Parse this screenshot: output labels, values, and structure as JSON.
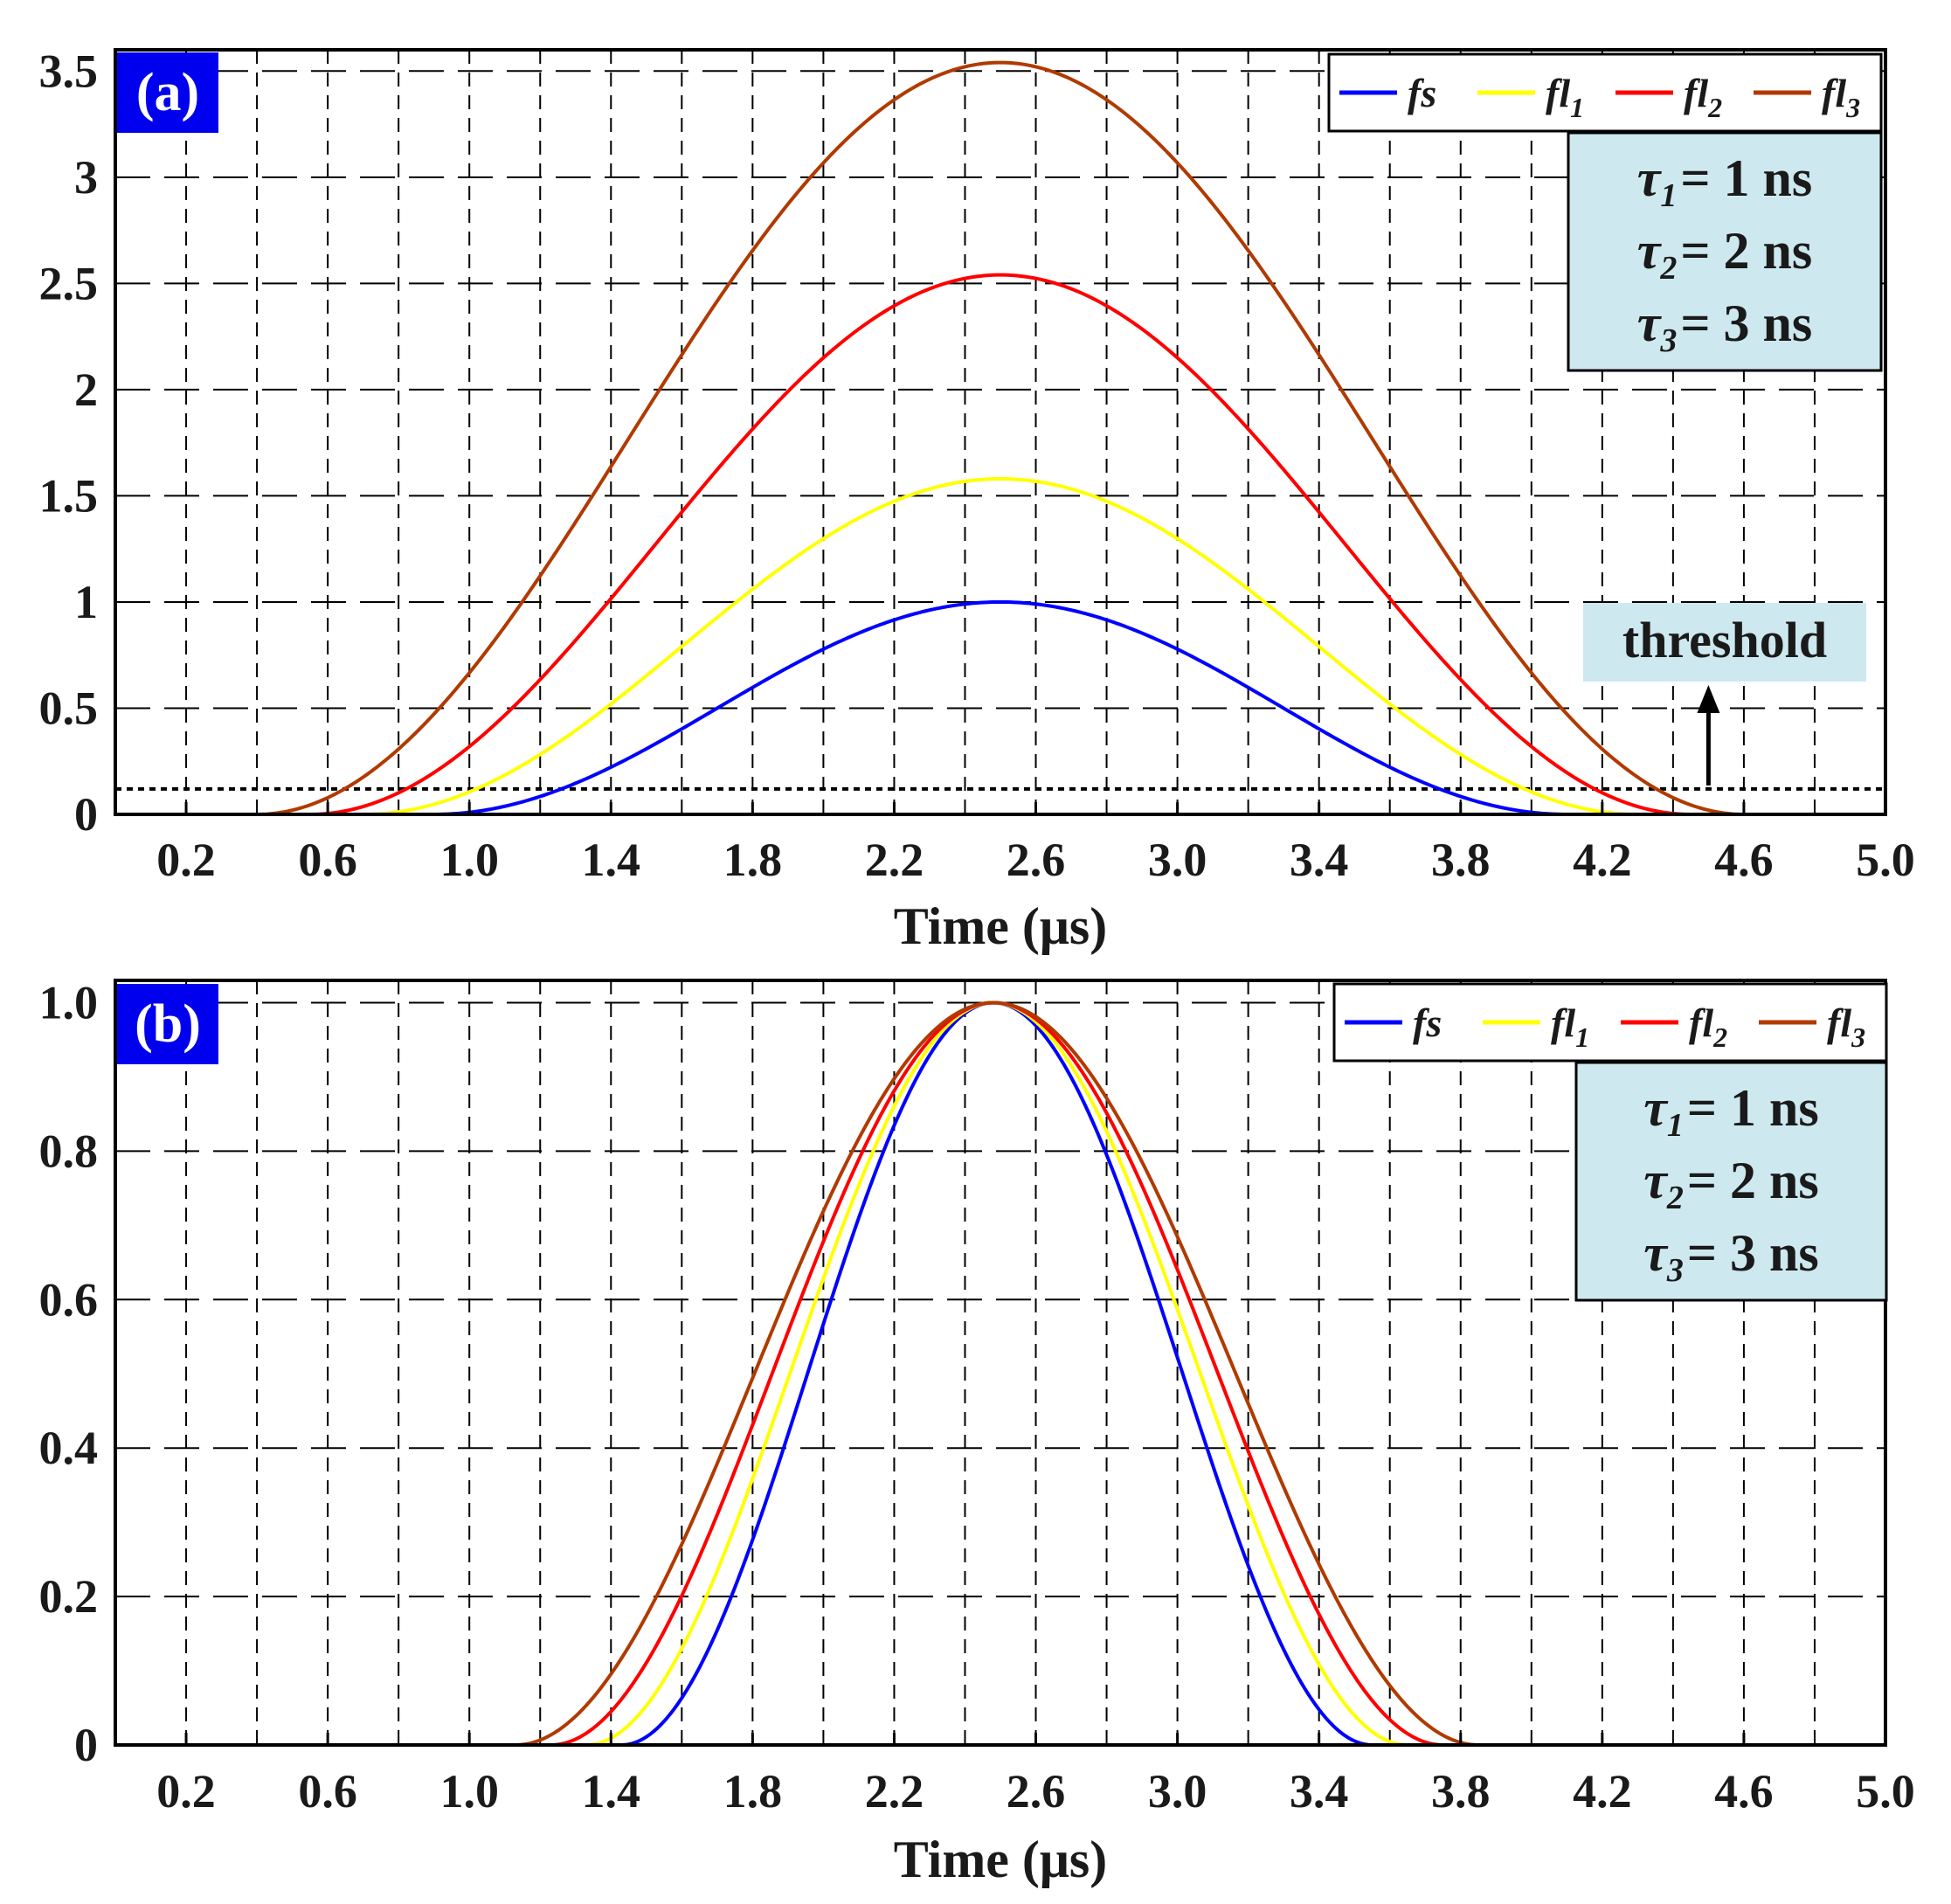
{
  "chart_data": [
    {
      "type": "line",
      "panel_label": "(a)",
      "xlabel": "Time (μs)",
      "ylabel": "",
      "xlim": [
        0,
        5.0
      ],
      "ylim": [
        0,
        3.6
      ],
      "x_ticks": [
        0.2,
        0.6,
        1.0,
        1.4,
        1.8,
        2.2,
        2.6,
        3.0,
        3.4,
        3.8,
        4.2,
        4.6,
        5.0
      ],
      "x_tick_labels": [
        "0.2",
        "0.6",
        "1.0",
        "1.4",
        "1.8",
        "2.2",
        "2.6",
        "3.0",
        "3.4",
        "3.8",
        "4.2",
        "4.6",
        "5.0"
      ],
      "y_ticks": [
        0,
        0.5,
        1,
        1.5,
        2,
        2.5,
        3,
        3.5
      ],
      "y_tick_labels": [
        "0",
        "0.5",
        "1",
        "1.5",
        "2",
        "2.5",
        "3",
        "3.5"
      ],
      "grid": true,
      "legend_position": "top-right",
      "series": [
        {
          "name": "fs",
          "color": "#0000ff",
          "peak_x": 2.5,
          "peak_y": 1.0,
          "start_x": 0.9,
          "end_x": 4.1
        },
        {
          "name": "fl1",
          "color": "#ffff00",
          "peak_x": 2.5,
          "peak_y": 1.58,
          "start_x": 0.7,
          "end_x": 4.3
        },
        {
          "name": "fl2",
          "color": "#ff0000",
          "peak_x": 2.5,
          "peak_y": 2.54,
          "start_x": 0.55,
          "end_x": 4.45
        },
        {
          "name": "fl3",
          "color": "#b03a00",
          "peak_x": 2.5,
          "peak_y": 3.54,
          "start_x": 0.4,
          "end_x": 4.6
        }
      ],
      "threshold": {
        "label": "threshold",
        "y": 0.12,
        "arrow_x": 4.5
      },
      "info_box": [
        "τ1 = 1 ns",
        "τ2 = 2 ns",
        "τ3 = 3 ns"
      ]
    },
    {
      "type": "line",
      "panel_label": "(b)",
      "xlabel": "Time (μs)",
      "ylabel": "",
      "xlim": [
        0,
        5.0
      ],
      "ylim": [
        0,
        1.03
      ],
      "x_ticks": [
        0.2,
        0.6,
        1.0,
        1.4,
        1.8,
        2.2,
        2.6,
        3.0,
        3.4,
        3.8,
        4.2,
        4.6,
        5.0
      ],
      "x_tick_labels": [
        "0.2",
        "0.6",
        "1.0",
        "1.4",
        "1.8",
        "2.2",
        "2.6",
        "3.0",
        "3.4",
        "3.8",
        "4.2",
        "4.6",
        "5.0"
      ],
      "y_ticks": [
        0,
        0.2,
        0.4,
        0.6,
        0.8,
        1.0
      ],
      "y_tick_labels": [
        "0",
        "0.2",
        "0.4",
        "0.6",
        "0.8",
        "1.0"
      ],
      "grid": true,
      "legend_position": "top-right",
      "series": [
        {
          "name": "fs",
          "color": "#0000ff",
          "peak_x": 2.48,
          "peak_y": 1.0,
          "start_x": 1.43,
          "end_x": 3.55
        },
        {
          "name": "fl1",
          "color": "#ffff00",
          "peak_x": 2.48,
          "peak_y": 1.0,
          "start_x": 1.33,
          "end_x": 3.65
        },
        {
          "name": "fl2",
          "color": "#ff0000",
          "peak_x": 2.48,
          "peak_y": 1.0,
          "start_x": 1.23,
          "end_x": 3.75
        },
        {
          "name": "fl3",
          "color": "#b03a00",
          "peak_x": 2.48,
          "peak_y": 1.0,
          "start_x": 1.13,
          "end_x": 3.85
        }
      ],
      "info_box": [
        "τ1 = 1 ns",
        "τ2 = 2 ns",
        "τ3 = 3 ns"
      ]
    }
  ],
  "legend": [
    {
      "base": "fs",
      "sub": ""
    },
    {
      "base": "fl",
      "sub": "1"
    },
    {
      "base": "fl",
      "sub": "2"
    },
    {
      "base": "fl",
      "sub": "3"
    }
  ],
  "info_box_lines": [
    {
      "tau": "τ",
      "sub": "1",
      "rest": "= 1 ns"
    },
    {
      "tau": "τ",
      "sub": "2",
      "rest": "= 2 ns"
    },
    {
      "tau": "τ",
      "sub": "3",
      "rest": "= 3 ns"
    }
  ],
  "colors": {
    "panel_label_bg": "#0000ee",
    "info_box_bg": "#cde9ef",
    "threshold_box_bg": "#cde9ef"
  }
}
